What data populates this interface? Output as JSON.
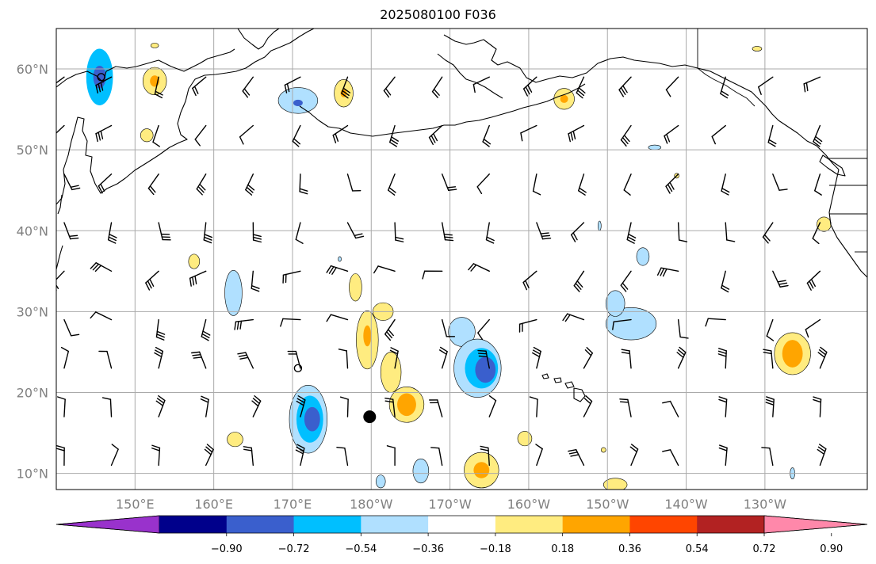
{
  "title": "2025080100 F036",
  "map": {
    "lon_range": [
      140,
      243
    ],
    "lat_range": [
      8,
      65
    ],
    "lat_ticks": [
      {
        "value": 10,
        "label": "10°N"
      },
      {
        "value": 20,
        "label": "20°N"
      },
      {
        "value": 30,
        "label": "30°N"
      },
      {
        "value": 40,
        "label": "40°N"
      },
      {
        "value": 50,
        "label": "50°N"
      },
      {
        "value": 60,
        "label": "60°N"
      }
    ],
    "lon_ticks": [
      {
        "value": 150,
        "label": "150°E"
      },
      {
        "value": 160,
        "label": "160°E"
      },
      {
        "value": 170,
        "label": "170°E"
      },
      {
        "value": 180,
        "label": "180°W"
      },
      {
        "value": 190,
        "label": "170°W"
      },
      {
        "value": 200,
        "label": "160°W"
      },
      {
        "value": 210,
        "label": "150°W"
      },
      {
        "value": 220,
        "label": "140°W"
      },
      {
        "value": 230,
        "label": "130°W"
      }
    ],
    "grid": true,
    "colors": {
      "grid": "#aaaaaa",
      "coast": "#000000",
      "tick_label": "#808080"
    },
    "barb_spacing_deg": {
      "lon": 6,
      "lat": 6
    },
    "markers": [
      {
        "type": "filled-circle",
        "lon": 179.8,
        "lat": 17.0
      },
      {
        "type": "open-circle",
        "lon": 170.7,
        "lat": 23.0
      },
      {
        "type": "open-circle",
        "lon": 145.7,
        "lat": 59.0
      }
    ]
  },
  "colorbar": {
    "ticks": [
      "−0.90",
      "−0.72",
      "−0.54",
      "−0.36",
      "−0.18",
      "0.18",
      "0.36",
      "0.54",
      "0.72",
      "0.90"
    ],
    "colors": [
      "#9932cc",
      "#00008b",
      "#3a5fcd",
      "#00bfff",
      "#b0e0ff",
      "#ffffff",
      "#ffec80",
      "#ffa500",
      "#ff4500",
      "#b22222",
      "#ff88aa"
    ],
    "extend": "both"
  },
  "fields": {
    "blobs": [
      {
        "lon": 145.5,
        "lat": 59,
        "rx": 1.7,
        "ry": 3.5,
        "level": -2
      },
      {
        "lon": 145.5,
        "lat": 59,
        "rx": 0.8,
        "ry": 1.4,
        "level": -3
      },
      {
        "lon": 170.7,
        "lat": 56.1,
        "rx": 2.5,
        "ry": 1.6,
        "level": -1
      },
      {
        "lon": 170.7,
        "lat": 55.8,
        "rx": 0.6,
        "ry": 0.4,
        "level": -3
      },
      {
        "lon": 152.5,
        "lat": 58.5,
        "rx": 1.5,
        "ry": 1.7,
        "level": 1
      },
      {
        "lon": 152.5,
        "lat": 58.5,
        "rx": 0.6,
        "ry": 0.7,
        "level": 2
      },
      {
        "lon": 176.5,
        "lat": 57,
        "rx": 1.2,
        "ry": 1.7,
        "level": 1
      },
      {
        "lon": 176.5,
        "lat": 57,
        "rx": 0.4,
        "ry": 0.5,
        "level": 2
      },
      {
        "lon": 204.5,
        "lat": 56.3,
        "rx": 1.3,
        "ry": 1.3,
        "level": 1
      },
      {
        "lon": 204.5,
        "lat": 56.3,
        "rx": 0.5,
        "ry": 0.5,
        "level": 2
      },
      {
        "lon": 151.5,
        "lat": 51.8,
        "rx": 0.8,
        "ry": 0.8,
        "level": 1
      },
      {
        "lon": 152.5,
        "lat": 62.9,
        "rx": 0.5,
        "ry": 0.3,
        "level": 1
      },
      {
        "lon": 157.5,
        "lat": 36.2,
        "rx": 0.7,
        "ry": 0.9,
        "level": 1
      },
      {
        "lon": 162.5,
        "lat": 32.3,
        "rx": 1.1,
        "ry": 2.8,
        "level": -1
      },
      {
        "lon": 178,
        "lat": 33,
        "rx": 0.8,
        "ry": 1.7,
        "level": 1
      },
      {
        "lon": 181.5,
        "lat": 30,
        "rx": 1.3,
        "ry": 1.1,
        "level": 1
      },
      {
        "lon": 179.5,
        "lat": 26.5,
        "rx": 1.4,
        "ry": 3.6,
        "level": 1
      },
      {
        "lon": 179.5,
        "lat": 27,
        "rx": 0.5,
        "ry": 1.3,
        "level": 2
      },
      {
        "lon": 182.5,
        "lat": 22.5,
        "rx": 1.3,
        "ry": 2.5,
        "level": 1
      },
      {
        "lon": 184.5,
        "lat": 18.5,
        "rx": 2.2,
        "ry": 2.2,
        "level": 1
      },
      {
        "lon": 184.5,
        "lat": 18.5,
        "rx": 1.2,
        "ry": 1.4,
        "level": 2
      },
      {
        "lon": 191.5,
        "lat": 27.5,
        "rx": 1.7,
        "ry": 1.8,
        "level": -1
      },
      {
        "lon": 193.5,
        "lat": 23,
        "rx": 3.0,
        "ry": 3.6,
        "level": -1
      },
      {
        "lon": 194,
        "lat": 23,
        "rx": 2.1,
        "ry": 2.5,
        "level": -2
      },
      {
        "lon": 194.5,
        "lat": 22.8,
        "rx": 1.3,
        "ry": 1.6,
        "level": -3
      },
      {
        "lon": 213,
        "lat": 28.5,
        "rx": 3.2,
        "ry": 2.0,
        "level": -1
      },
      {
        "lon": 211,
        "lat": 31,
        "rx": 1.2,
        "ry": 1.6,
        "level": -1
      },
      {
        "lon": 214.5,
        "lat": 36.8,
        "rx": 0.8,
        "ry": 1.1,
        "level": -1
      },
      {
        "lon": 172,
        "lat": 16.7,
        "rx": 2.4,
        "ry": 4.2,
        "level": -1
      },
      {
        "lon": 172.2,
        "lat": 16.7,
        "rx": 1.7,
        "ry": 2.9,
        "level": -2
      },
      {
        "lon": 172.5,
        "lat": 16.7,
        "rx": 1.0,
        "ry": 1.5,
        "level": -3
      },
      {
        "lon": 162.7,
        "lat": 14.2,
        "rx": 1.0,
        "ry": 0.9,
        "level": 1
      },
      {
        "lon": 186.3,
        "lat": 10.3,
        "rx": 1.0,
        "ry": 1.5,
        "level": -1
      },
      {
        "lon": 194,
        "lat": 10.4,
        "rx": 2.2,
        "ry": 2.2,
        "level": 1
      },
      {
        "lon": 194,
        "lat": 10.4,
        "rx": 1.0,
        "ry": 1.0,
        "level": 2
      },
      {
        "lon": 199.5,
        "lat": 14.3,
        "rx": 0.9,
        "ry": 0.9,
        "level": 1
      },
      {
        "lon": 233.5,
        "lat": 24.8,
        "rx": 2.3,
        "ry": 2.6,
        "level": 1
      },
      {
        "lon": 233.5,
        "lat": 24.8,
        "rx": 1.3,
        "ry": 1.7,
        "level": 2
      },
      {
        "lon": 237.5,
        "lat": 40.8,
        "rx": 0.9,
        "ry": 0.9,
        "level": 1
      },
      {
        "lon": 211,
        "lat": 8.6,
        "rx": 1.5,
        "ry": 0.8,
        "level": 1
      },
      {
        "lon": 181.2,
        "lat": 9,
        "rx": 0.6,
        "ry": 0.8,
        "level": -1
      },
      {
        "lon": 176,
        "lat": 36.5,
        "rx": 0.2,
        "ry": 0.3,
        "level": -1
      },
      {
        "lon": 209.5,
        "lat": 12.9,
        "rx": 0.3,
        "ry": 0.3,
        "level": 1
      },
      {
        "lon": 218.8,
        "lat": 46.8,
        "rx": 0.3,
        "ry": 0.3,
        "level": 1
      },
      {
        "lon": 209,
        "lat": 40.6,
        "rx": 0.2,
        "ry": 0.6,
        "level": -1
      },
      {
        "lon": 216,
        "lat": 50.3,
        "rx": 0.8,
        "ry": 0.3,
        "level": -1
      },
      {
        "lon": 229,
        "lat": 62.5,
        "rx": 0.6,
        "ry": 0.3,
        "level": 1
      },
      {
        "lon": 233.5,
        "lat": 10,
        "rx": 0.3,
        "ry": 0.7,
        "level": -1
      }
    ]
  }
}
